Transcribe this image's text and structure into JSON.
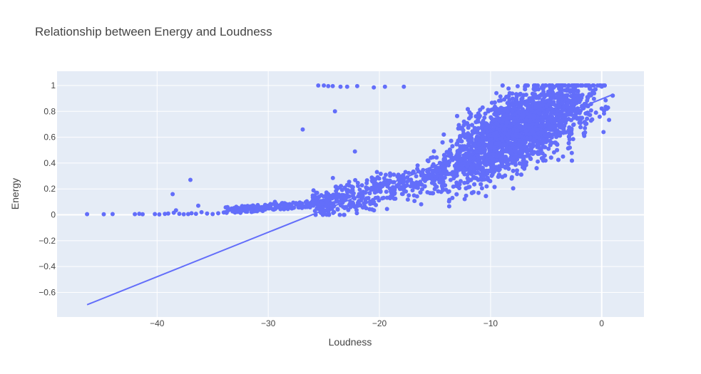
{
  "chart_data": {
    "type": "scatter",
    "title": "Relationship between Energy  and Loudness",
    "xlabel": "Loudness",
    "ylabel": "Energy",
    "xlim": [
      -49,
      3.8
    ],
    "ylim": [
      -0.79,
      1.11
    ],
    "x_ticks": [
      -40,
      -30,
      -20,
      -10,
      0
    ],
    "x_tick_labels": [
      "−40",
      "−30",
      "−20",
      "−10",
      "0"
    ],
    "y_ticks": [
      -0.6,
      -0.4,
      -0.2,
      0,
      0.2,
      0.4,
      0.6,
      0.8,
      1
    ],
    "y_tick_labels": [
      "−0.6",
      "−0.4",
      "−0.2",
      "0",
      "0.2",
      "0.4",
      "0.6",
      "0.8",
      "1"
    ],
    "grid": true,
    "colors": {
      "marker": "#636efa",
      "plot_bg": "#e5ecf6",
      "grid": "#ffffff"
    },
    "series": [
      {
        "type": "scatter",
        "points": [
          [
            -46.3,
            0.005
          ],
          [
            -44.8,
            0.004
          ],
          [
            -44.0,
            0.006
          ],
          [
            -42.0,
            0.005
          ],
          [
            -41.6,
            0.008
          ],
          [
            -41.3,
            0.004
          ],
          [
            -40.2,
            0.006
          ],
          [
            -39.8,
            0.003
          ],
          [
            -39.3,
            0.007
          ],
          [
            -39.0,
            0.01
          ],
          [
            -38.5,
            0.016
          ],
          [
            -38.3,
            0.035
          ],
          [
            -38.0,
            0.008
          ],
          [
            -37.6,
            0.004
          ],
          [
            -37.2,
            0.006
          ],
          [
            -36.9,
            0.012
          ],
          [
            -36.5,
            0.008
          ],
          [
            -36.0,
            0.02
          ],
          [
            -35.5,
            0.01
          ],
          [
            -35.0,
            0.006
          ],
          [
            -34.5,
            0.012
          ],
          [
            -34.0,
            0.018
          ],
          [
            -33.5,
            0.04
          ],
          [
            -33.0,
            0.02
          ],
          [
            -32.5,
            0.015
          ],
          [
            -32.0,
            0.03
          ],
          [
            -31.5,
            0.022
          ],
          [
            -31.0,
            0.045
          ],
          [
            -30.5,
            0.03
          ],
          [
            -30.0,
            0.05
          ],
          [
            -29.5,
            0.04
          ],
          [
            -29.0,
            0.06
          ],
          [
            -28.5,
            0.05
          ],
          [
            -28.0,
            0.07
          ],
          [
            -27.5,
            0.08
          ],
          [
            -27.0,
            0.06
          ],
          [
            -26.5,
            0.09
          ],
          [
            -26.0,
            0.11
          ],
          [
            -38.6,
            0.16
          ],
          [
            -37.0,
            0.27
          ],
          [
            -36.3,
            0.07
          ],
          [
            -29.4,
            0.1
          ],
          [
            -26.9,
            0.66
          ],
          [
            -24.0,
            0.8
          ],
          [
            -22.2,
            0.49
          ],
          [
            -25.5,
            1.0
          ],
          [
            -25.0,
            1.0
          ],
          [
            -24.6,
            0.995
          ],
          [
            -24.2,
            0.995
          ],
          [
            -23.5,
            0.99
          ],
          [
            -22.9,
            0.99
          ],
          [
            -22.0,
            0.995
          ],
          [
            -19.5,
            0.99
          ],
          [
            -20.5,
            0.985
          ],
          [
            -17.8,
            0.99
          ]
        ]
      },
      {
        "type": "line",
        "name": "trendline",
        "x": [
          -46.3,
          1.0
        ],
        "y": [
          -0.695,
          0.93
        ]
      }
    ]
  }
}
